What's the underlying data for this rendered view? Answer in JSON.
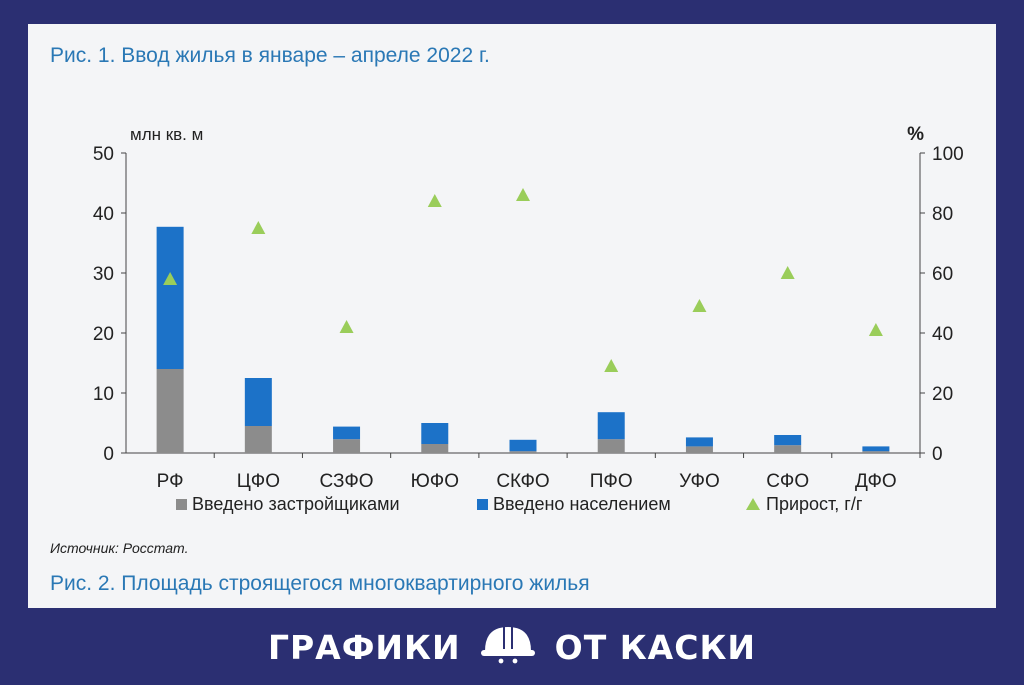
{
  "figure": {
    "title": "Рис. 1. Ввод жилья в январе – апреле 2022 г.",
    "source": "Источник: Росстат.",
    "next_title": "Рис. 2. Площадь строящегося многоквартирного жилья"
  },
  "footer": {
    "left_text": "ГРАФИКИ",
    "right_text": "ОТ КАСКИ",
    "logo_icon": "hard-hat-icon"
  },
  "colors": {
    "developers": "#8c8c8c",
    "population": "#1c72c8",
    "growth": "#9acd5a",
    "title": "#2a78b5",
    "frame": "#2b2f72"
  },
  "chart_data": {
    "type": "bar",
    "stacked": true,
    "categories": [
      "РФ",
      "ЦФО",
      "СЗФО",
      "ЮФО",
      "СКФО",
      "ПФО",
      "УФО",
      "СФО",
      "ДФО"
    ],
    "ylabel": "млн кв. м",
    "ylim": [
      0,
      50
    ],
    "yticks": [
      0,
      10,
      20,
      30,
      40,
      50
    ],
    "y2label": "%",
    "y2lim": [
      0,
      100
    ],
    "y2ticks": [
      0,
      20,
      40,
      60,
      80,
      100
    ],
    "grid": false,
    "legend_position": "bottom",
    "series": [
      {
        "name": "Введено застройщиками",
        "type": "bar",
        "axis": "left",
        "color": "#8c8c8c",
        "values": [
          14.0,
          4.5,
          2.3,
          1.5,
          0.3,
          2.3,
          1.1,
          1.3,
          0.3
        ]
      },
      {
        "name": "Введено населением",
        "type": "bar",
        "axis": "left",
        "color": "#1c72c8",
        "values": [
          23.7,
          8.0,
          2.1,
          3.5,
          1.9,
          4.5,
          1.5,
          1.7,
          0.8
        ]
      },
      {
        "name": "Прирост, г/г",
        "type": "scatter",
        "marker": "triangle",
        "axis": "right",
        "color": "#9acd5a",
        "values": [
          58,
          75,
          42,
          84,
          86,
          29,
          49,
          60,
          41
        ]
      }
    ]
  }
}
